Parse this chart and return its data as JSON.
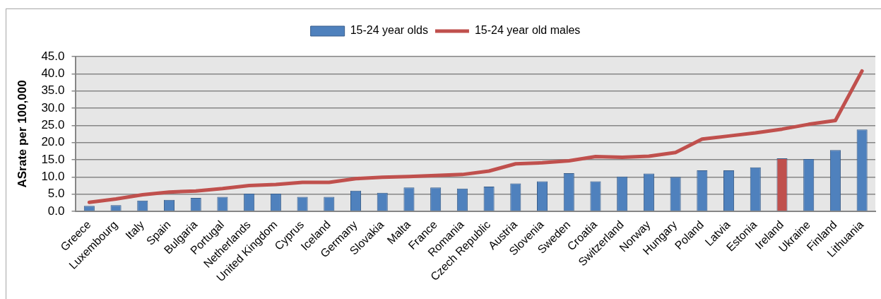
{
  "chart_data": {
    "type": "bar",
    "categories": [
      "Greece",
      "Luxembourg",
      "Italy",
      "Spain",
      "Bulgaria",
      "Portugal",
      "Netherlands",
      "United Kingdom",
      "Cyprus",
      "Iceland",
      "Germany",
      "Slovakia",
      "Malta",
      "France",
      "Romania",
      "Czech Republic",
      "Austria",
      "Slovenia",
      "Sweden",
      "Croatia",
      "Switzerland",
      "Norway",
      "Hungary",
      "Poland",
      "Latvia",
      "Estonia",
      "Ireland",
      "Ukraine",
      "Finland",
      "Lithuania"
    ],
    "series": [
      {
        "name": "15-24 year olds",
        "colors": [
          "#4f81bd",
          "#4f81bd",
          "#4f81bd",
          "#4f81bd",
          "#4f81bd",
          "#4f81bd",
          "#4f81bd",
          "#4f81bd",
          "#4f81bd",
          "#4f81bd",
          "#4f81bd",
          "#4f81bd",
          "#4f81bd",
          "#4f81bd",
          "#4f81bd",
          "#4f81bd",
          "#4f81bd",
          "#4f81bd",
          "#4f81bd",
          "#4f81bd",
          "#4f81bd",
          "#4f81bd",
          "#4f81bd",
          "#4f81bd",
          "#4f81bd",
          "#4f81bd",
          "#c0504d",
          "#4f81bd",
          "#4f81bd",
          "#4f81bd"
        ],
        "values": [
          1.6,
          1.8,
          3.1,
          3.3,
          3.9,
          4.2,
          5.1,
          5.1,
          4.2,
          4.2,
          6.0,
          5.4,
          6.9,
          6.9,
          6.6,
          7.2,
          8.1,
          8.7,
          11.1,
          8.7,
          10.1,
          11.0,
          10.0,
          11.9,
          11.9,
          12.8,
          15.4,
          15.2,
          17.8,
          23.8
        ]
      },
      {
        "name": "15-24 year old males",
        "type": "line",
        "color": "#c0504d",
        "values": [
          2.6,
          3.6,
          4.8,
          5.6,
          5.9,
          6.6,
          7.5,
          7.8,
          8.4,
          8.4,
          9.5,
          9.9,
          10.1,
          10.4,
          10.7,
          11.7,
          13.8,
          14.1,
          14.7,
          15.9,
          15.7,
          16.0,
          17.1,
          21.0,
          21.9,
          22.8,
          23.9,
          25.3,
          26.4,
          40.8
        ]
      }
    ],
    "ylabel": "ASrate per 100,000",
    "ylim": [
      0,
      45
    ],
    "yticks": [
      {
        "value": 0,
        "label": "0.0"
      },
      {
        "value": 5,
        "label": "5.0"
      },
      {
        "value": 10,
        "label": "10.0"
      },
      {
        "value": 15,
        "label": "15.0"
      },
      {
        "value": 20,
        "label": "20.0"
      },
      {
        "value": 25,
        "label": "25.0"
      },
      {
        "value": 30,
        "label": "30.0"
      },
      {
        "value": 35,
        "label": "35.0"
      },
      {
        "value": 40,
        "label": "40.0"
      },
      {
        "value": 45,
        "label": "45.0"
      }
    ],
    "grid": "y",
    "legend": "top",
    "marker": "none"
  }
}
